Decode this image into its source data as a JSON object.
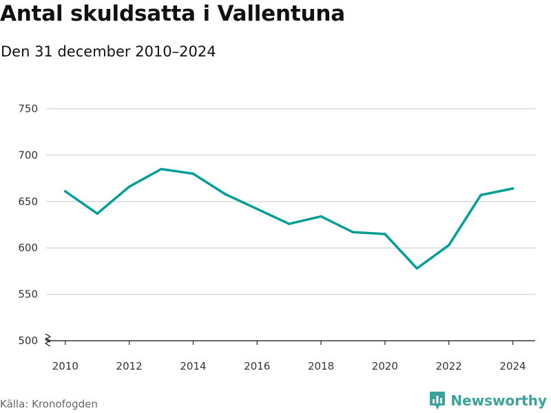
{
  "chart_data": {
    "type": "line",
    "title": "Antal skuldsatta i Vallentuna",
    "subtitle": "Den 31 december 2010–2024",
    "x": [
      2010,
      2011,
      2012,
      2013,
      2014,
      2015,
      2016,
      2017,
      2018,
      2019,
      2020,
      2021,
      2022,
      2023,
      2024
    ],
    "series": [
      {
        "name": "Antal skuldsatta",
        "values": [
          661,
          637,
          666,
          685,
          680,
          658,
          642,
          626,
          634,
          617,
          615,
          578,
          603,
          657,
          664
        ],
        "color": "#009e96"
      }
    ],
    "yticks": [
      500,
      550,
      600,
      650,
      700,
      750
    ],
    "xticks": [
      2010,
      2012,
      2014,
      2016,
      2018,
      2020,
      2022,
      2024
    ],
    "ylim": [
      500,
      750
    ],
    "xlim": [
      2009.4,
      2024.7
    ],
    "xlabel": "",
    "ylabel": "",
    "grid": true,
    "axis_break": true
  },
  "footer": {
    "source": "Källa: Kronofogden",
    "brand": "Newsworthy",
    "brand_color": "#3aa39a"
  },
  "colors": {
    "grid": "#d9d9d9",
    "axis": "#333333"
  }
}
